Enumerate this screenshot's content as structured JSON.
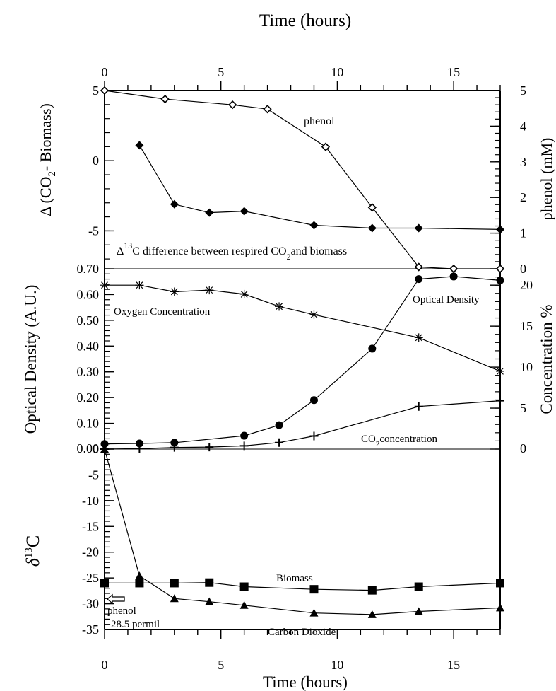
{
  "chart_data": {
    "type": "line",
    "x_axis": {
      "label": "Time (hours)",
      "range": [
        0,
        17
      ],
      "ticks": [
        0,
        5,
        10,
        15
      ],
      "shown_top_and_bottom": true
    },
    "panels": [
      {
        "id": "top",
        "y_left": {
          "label_parts": [
            "Δ  (CO",
            "2",
            "- Biomass)"
          ],
          "range": [
            -7.7,
            5
          ],
          "ticks": [
            -5,
            0,
            5
          ]
        },
        "y_right": {
          "label": "phenol (mM)",
          "range": [
            0,
            5
          ],
          "ticks": [
            0,
            1,
            2,
            3,
            4,
            5
          ]
        },
        "series": [
          {
            "name": "phenol",
            "axis": "right",
            "marker": "diamond-open",
            "x": [
              0,
              2.6,
              5.5,
              7.0,
              9.5,
              11.5,
              13.5,
              15.0,
              17.0
            ],
            "y": [
              5.0,
              4.76,
              4.6,
              4.48,
              3.42,
              1.72,
              0.05,
              0.0,
              0.0
            ]
          },
          {
            "name": "Δ13C difference",
            "axis": "left",
            "marker": "diamond-filled",
            "x": [
              1.5,
              3.0,
              4.5,
              6.0,
              9.0,
              11.5,
              13.5,
              17.0
            ],
            "y": [
              1.1,
              -3.1,
              -3.7,
              -3.6,
              -4.6,
              -4.8,
              -4.8,
              -4.9
            ]
          }
        ],
        "annotations": [
          {
            "text": "phenol"
          },
          {
            "prefix": "Δ",
            "sup": "13",
            "mid": "C difference between respired CO",
            "sub": "2",
            "suffix": "and biomass"
          }
        ]
      },
      {
        "id": "middle",
        "y_left": {
          "label": "Optical Density (A.U.)",
          "range": [
            0,
            0.7
          ],
          "ticks": [
            "0.00",
            "0.10",
            "0.20",
            "0.30",
            "0.40",
            "0.50",
            "0.60",
            "0.70"
          ]
        },
        "y_right": {
          "label": "Concentration %",
          "range": [
            0,
            22
          ],
          "ticks": [
            0,
            5,
            10,
            15,
            20
          ]
        },
        "series": [
          {
            "name": "Oxygen Concentration",
            "axis": "right",
            "marker": "asterisk",
            "x": [
              0,
              1.5,
              3.0,
              4.5,
              6.0,
              7.5,
              9.0,
              13.5,
              17.0
            ],
            "y": [
              20.0,
              20.0,
              19.2,
              19.4,
              18.9,
              17.4,
              16.4,
              13.6,
              9.5
            ]
          },
          {
            "name": "Optical Density",
            "axis": "left",
            "marker": "circle-filled",
            "x": [
              0,
              1.5,
              3.0,
              6.0,
              7.5,
              9.0,
              11.5,
              13.5,
              15.0,
              17.0
            ],
            "y": [
              0.02,
              0.022,
              0.025,
              0.052,
              0.093,
              0.19,
              0.39,
              0.66,
              0.67,
              0.655
            ]
          },
          {
            "name": "CO2 concentration",
            "axis": "right",
            "marker": "plus",
            "x": [
              0,
              1.5,
              3.0,
              4.5,
              6.0,
              7.5,
              9.0,
              13.5,
              17.0
            ],
            "y": [
              0,
              0.05,
              0.2,
              0.25,
              0.4,
              0.8,
              1.6,
              5.2,
              5.9
            ]
          }
        ],
        "annotations": [
          {
            "text": "Oxygen Concentration"
          },
          {
            "text": "Optical Density"
          },
          {
            "pre": "CO",
            "sub": "2",
            "post": "concentration"
          }
        ]
      },
      {
        "id": "bottom",
        "y_left": {
          "label_parts": [
            "δ",
            "13",
            "C"
          ],
          "range": [
            -35,
            0
          ],
          "ticks": [
            -35,
            -30,
            -25,
            -20,
            -15,
            -10,
            -5,
            0
          ]
        },
        "series": [
          {
            "name": "Biomass",
            "axis": "left",
            "marker": "square-filled",
            "x": [
              0,
              1.5,
              3.0,
              4.5,
              6.0,
              9.0,
              11.5,
              13.5,
              17.0
            ],
            "y": [
              -26.0,
              -26.0,
              -26.0,
              -25.9,
              -26.7,
              -27.2,
              -27.4,
              -26.7,
              -26.0
            ]
          },
          {
            "name": "Carbon Dioxide",
            "axis": "left",
            "marker": "triangle-filled",
            "x": [
              0,
              1.5,
              3.0,
              4.5,
              6.0,
              9.0,
              11.5,
              13.5,
              17.0
            ],
            "y": [
              0,
              -24.6,
              -29.0,
              -29.6,
              -30.3,
              -31.8,
              -32.1,
              -31.5,
              -30.8
            ]
          }
        ],
        "annotations": [
          {
            "text": "Biomass"
          },
          {
            "text": "Carbon Dioxide"
          },
          {
            "text": "phenol"
          },
          {
            "text": "-28.5 permil"
          }
        ]
      }
    ]
  }
}
